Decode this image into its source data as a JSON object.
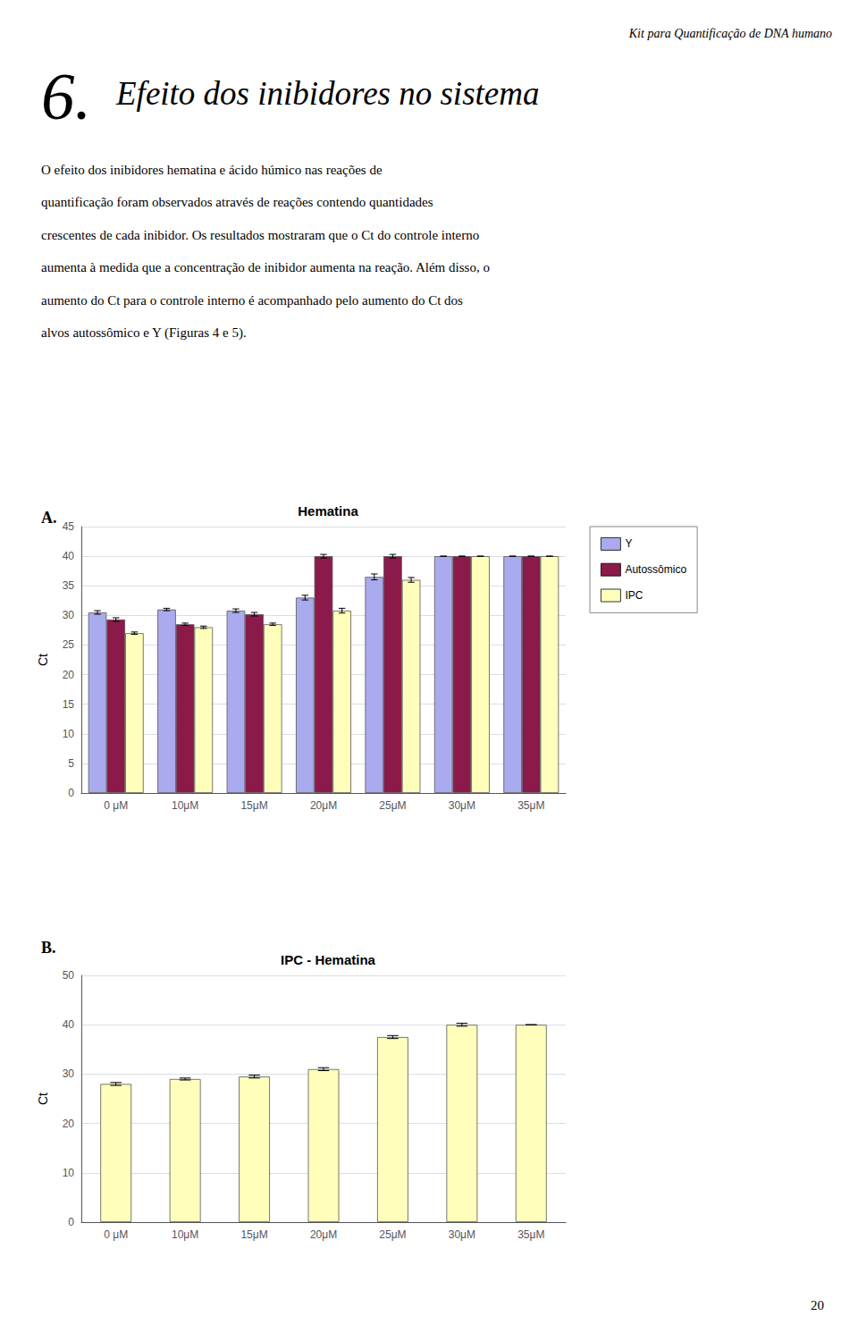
{
  "chart_data": [
    {
      "type": "bar",
      "title": "Hematina",
      "categories": [
        "0 μM",
        "10μM",
        "15μM",
        "20μM",
        "25μM",
        "30μM",
        "35μM"
      ],
      "series": [
        {
          "name": "Y",
          "color": "#AAAAEE",
          "values": [
            30.5,
            31.0,
            30.8,
            33.0,
            36.5,
            40.0,
            40.0
          ],
          "errors": [
            0.3,
            0.2,
            0.3,
            0.4,
            0.5,
            0.0,
            0.0
          ]
        },
        {
          "name": "Autossômico",
          "color": "#8B1A4A",
          "values": [
            29.3,
            28.5,
            30.2,
            40.0,
            40.0,
            40.0,
            40.0
          ],
          "errors": [
            0.3,
            0.2,
            0.3,
            0.3,
            0.3,
            0.0,
            0.0
          ]
        },
        {
          "name": "IPC",
          "color": "#FFFFBB",
          "values": [
            27.0,
            28.0,
            28.5,
            30.8,
            36.0,
            40.0,
            40.0
          ],
          "errors": [
            0.2,
            0.2,
            0.2,
            0.4,
            0.4,
            0.0,
            0.0
          ]
        }
      ],
      "ylabel": "Ct",
      "ylim": [
        0,
        45
      ],
      "yticks": [
        0,
        5,
        10,
        15,
        20,
        25,
        30,
        35,
        40,
        45
      ],
      "grid": true,
      "legend": "right"
    },
    {
      "type": "bar",
      "title": "IPC - Hematina",
      "categories": [
        "0 μM",
        "10μM",
        "15μM",
        "20μM",
        "25μM",
        "30μM",
        "35μM"
      ],
      "values": [
        28.0,
        29.0,
        29.5,
        31.0,
        37.5,
        40.0,
        40.0
      ],
      "errors": [
        0.3,
        0.2,
        0.3,
        0.3,
        0.3,
        0.3,
        0.0
      ],
      "color": "#FFFFBB",
      "ylabel": "Ct",
      "ylim": [
        0,
        50
      ],
      "yticks": [
        0,
        10,
        20,
        30,
        40,
        50
      ],
      "grid": true
    }
  ],
  "annotations": [
    "Kit para Quantificação de DNA humano",
    "6.",
    "Efeito dos inibidores no sistema",
    "O efeito dos inibidores hematina e ácido húmico nas reações de",
    "quantificação foram observados através de reações contendo quantidades",
    "crescentes de cada inibidor. Os resultados mostraram que o Ct do controle interno",
    "aumenta à medida que a concentração de inibidor aumenta na reação. Além disso, o",
    "aumento do Ct para o controle interno é acompanhado pelo aumento do Ct dos",
    "alvos autossômico e Y (Figuras 4 e 5).",
    "A.",
    "B.",
    "20"
  ]
}
